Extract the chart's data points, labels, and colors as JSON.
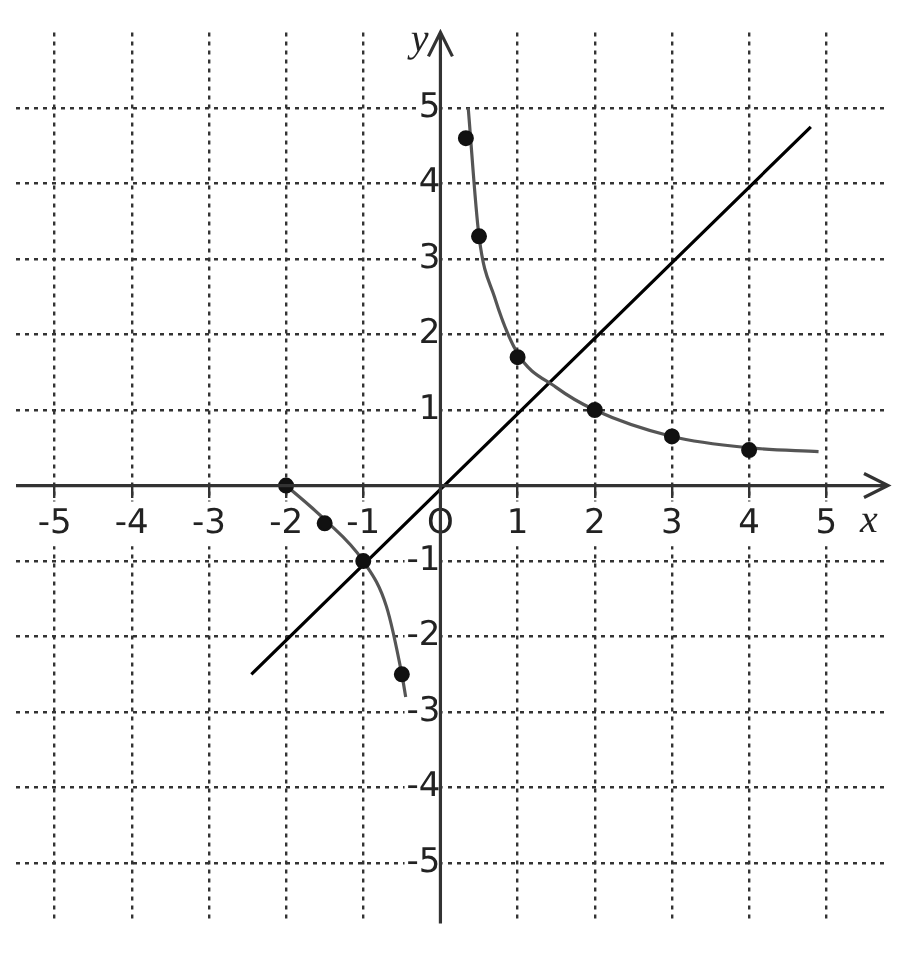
{
  "chart_data": {
    "type": "scatter",
    "xlabel": "x",
    "ylabel": "y",
    "xlim": [
      -5.5,
      5.8
    ],
    "ylim": [
      -5.8,
      6
    ],
    "xticks": [
      -5,
      -4,
      -3,
      -2,
      -1,
      {
        "value": 0,
        "label": "O"
      },
      1,
      2,
      3,
      4,
      5
    ],
    "yticks": [
      -5,
      -4,
      -3,
      -2,
      -1,
      {
        "value": 0,
        "label": null
      },
      1,
      2,
      3,
      4,
      5
    ],
    "grid": true,
    "legend": false,
    "series": [
      {
        "color": "#111111",
        "marker": "circle",
        "x": [
          -2,
          -1.5,
          -1,
          -0.5,
          0.33,
          0.5,
          1,
          2,
          3,
          4
        ],
        "values": [
          0,
          -0.5,
          -1,
          -2.5,
          4.6,
          3.3,
          1.7,
          1,
          0.65,
          0.47
        ]
      },
      {
        "type": "line",
        "color": "#555555",
        "marker": "none",
        "x": [
          0.36,
          0.5,
          0.7,
          1,
          1.5,
          2,
          3,
          4,
          4.9
        ],
        "values": [
          5,
          3.3,
          2.5,
          1.75,
          1.3,
          1,
          0.65,
          0.5,
          0.45
        ]
      },
      {
        "type": "line",
        "color": "#555555",
        "marker": "none",
        "x": [
          -2,
          -1.5,
          -1,
          -0.7,
          -0.5,
          -0.45
        ],
        "values": [
          0,
          -0.45,
          -1,
          -1.6,
          -2.5,
          -2.8
        ]
      },
      {
        "type": "line",
        "color": "#000000",
        "marker": "none",
        "x": [
          -2.45,
          4.8
        ],
        "values": [
          -2.5,
          4.75
        ]
      }
    ]
  }
}
